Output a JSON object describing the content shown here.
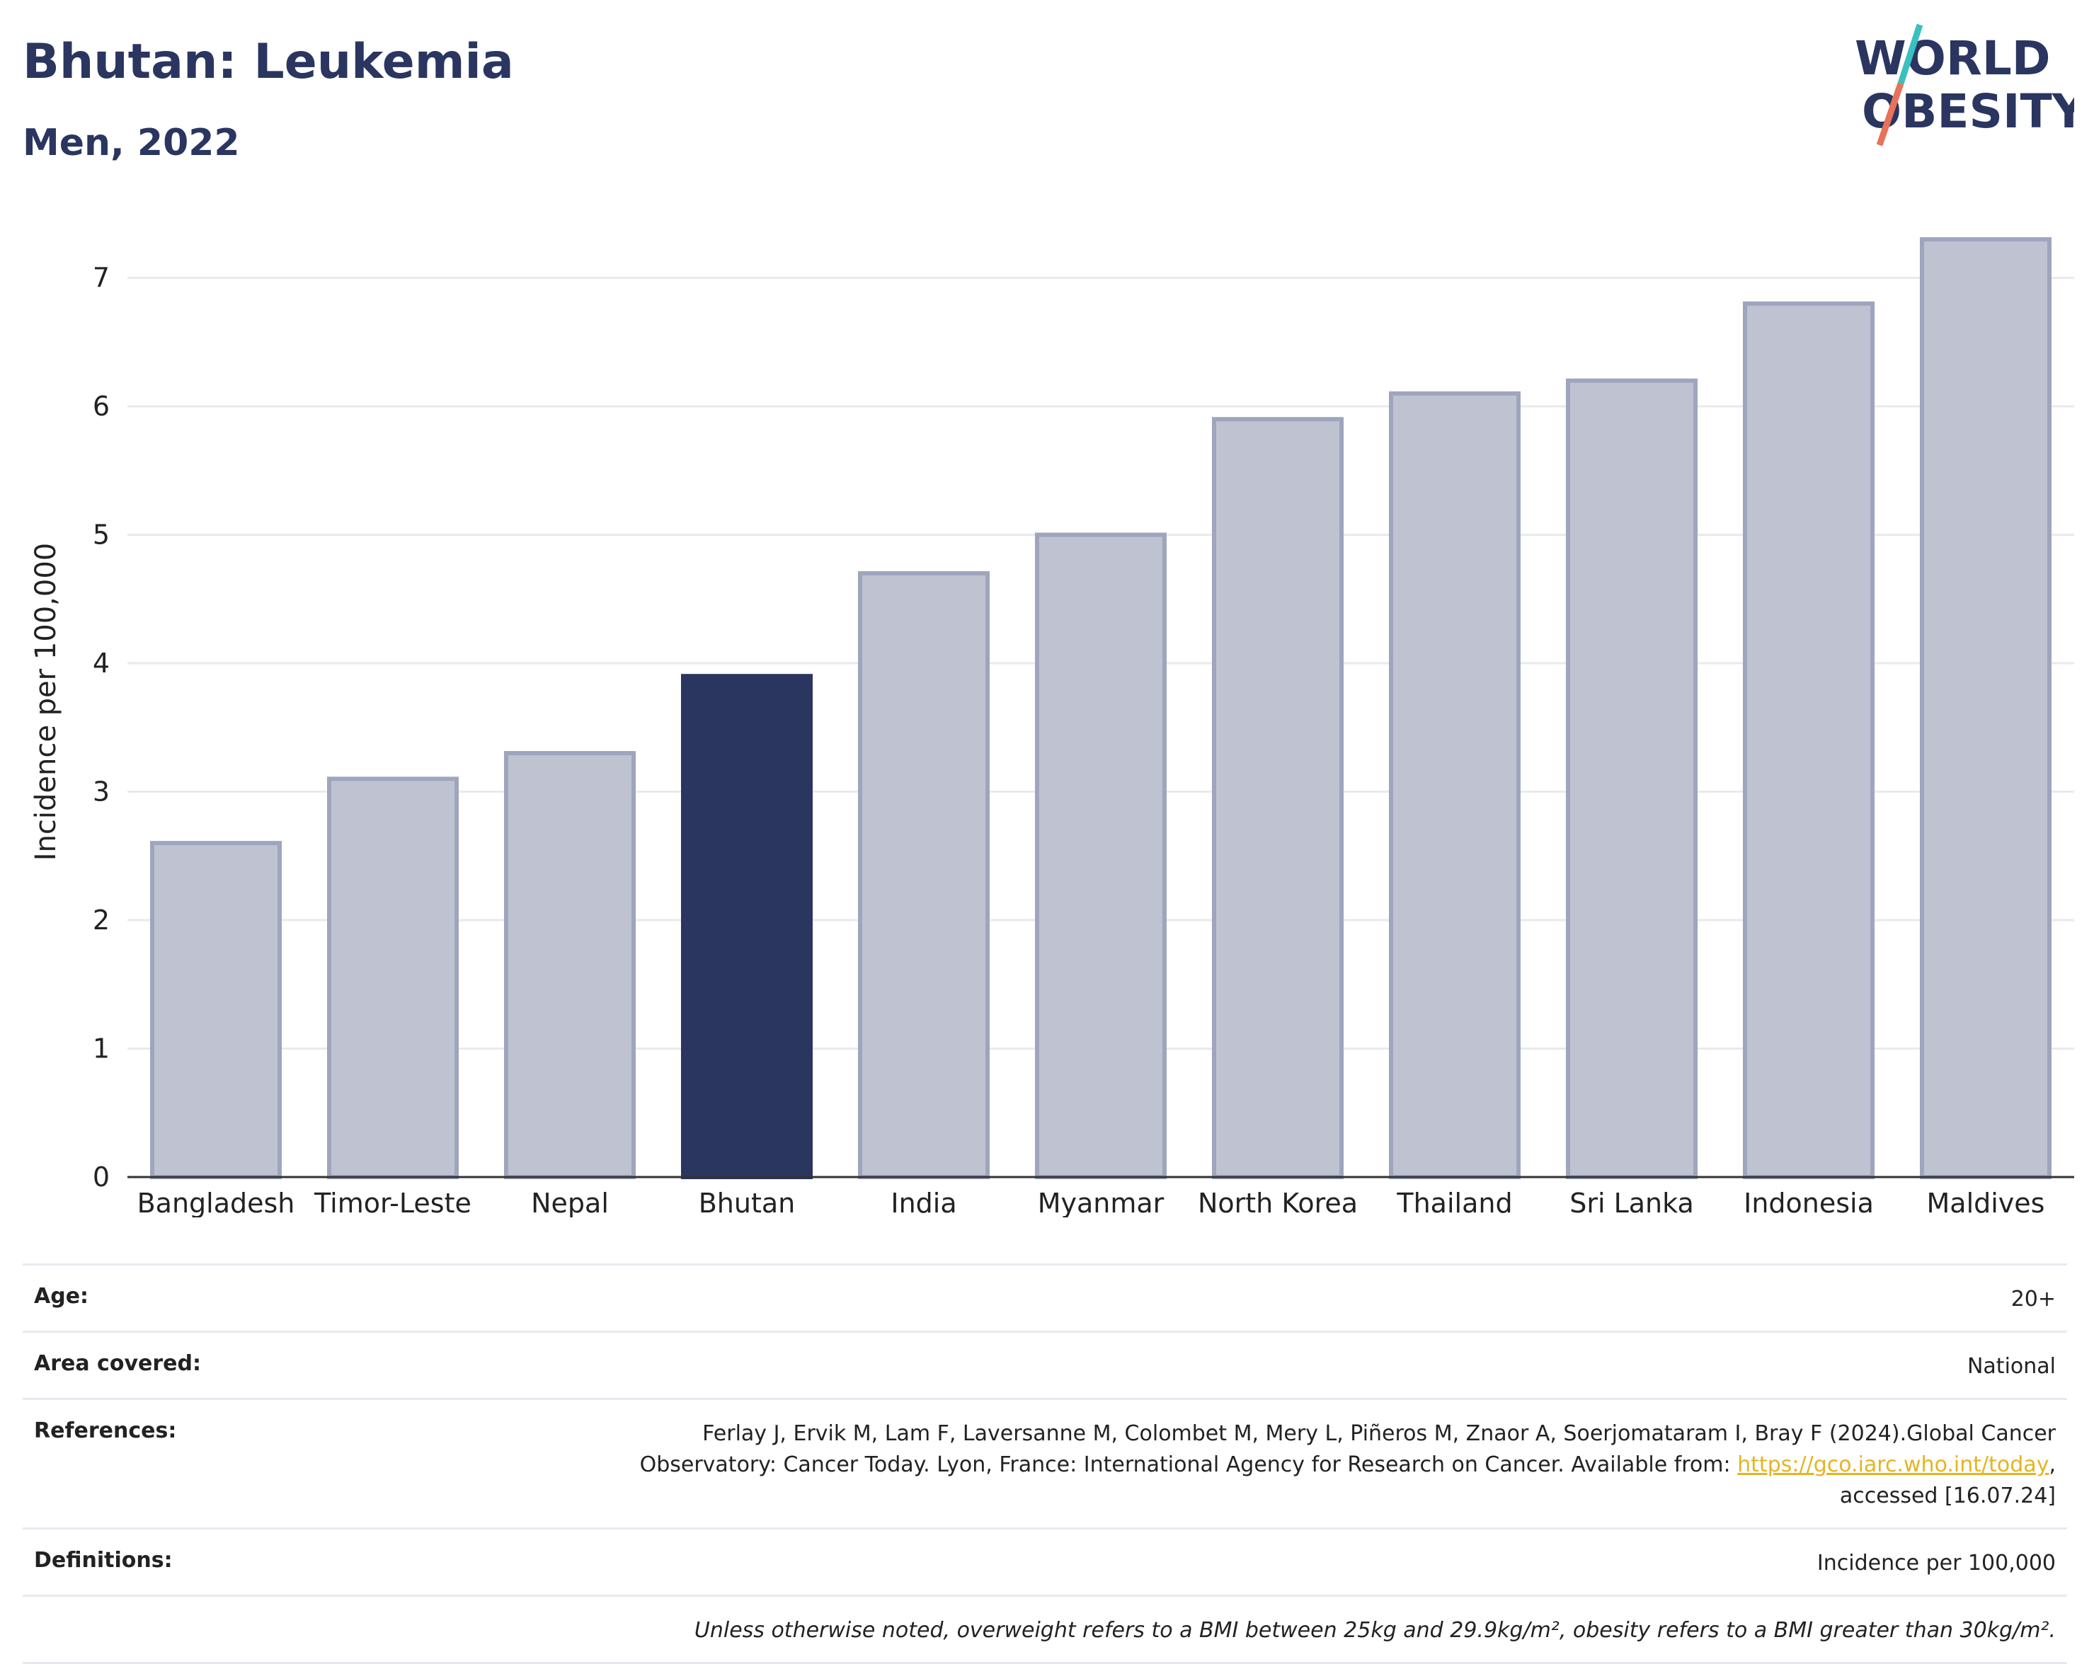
{
  "header": {
    "title": "Bhutan: Leukemia",
    "subtitle": "Men, 2022"
  },
  "logo": {
    "line1": "WORLD",
    "line2": "OBESITY",
    "colors": {
      "text": "#2a3560",
      "slash_top": "#3bbfbf",
      "slash_bottom": "#e8725a"
    }
  },
  "chart_data": {
    "type": "bar",
    "categories": [
      "Bangladesh",
      "Timor-Leste",
      "Nepal",
      "Bhutan",
      "India",
      "Myanmar",
      "North Korea",
      "Thailand",
      "Sri Lanka",
      "Indonesia",
      "Maldives"
    ],
    "values": [
      2.6,
      3.1,
      3.3,
      3.9,
      4.7,
      5.0,
      5.9,
      6.1,
      6.2,
      6.8,
      7.3
    ],
    "highlight": "Bhutan",
    "ylabel": "Incidence per 100,000",
    "xlabel": "",
    "ylim": [
      0,
      7.4
    ],
    "yticks": [
      0,
      1,
      2,
      3,
      4,
      5,
      6,
      7
    ],
    "grid": true,
    "colors": {
      "bar": "#bfc3d1",
      "bar_edge": "#9ea5bd",
      "highlight": "#2a3560",
      "grid": "#e8eaef",
      "axis": "#333333"
    }
  },
  "meta": {
    "rows": [
      {
        "key": "Age:",
        "value": "20+"
      },
      {
        "key": "Area covered:",
        "value": "National"
      },
      {
        "key": "References:",
        "value_pre": "Ferlay J, Ervik M, Lam F, Laversanne M, Colombet M, Mery L, Piñeros M, Znaor A, Soerjomataram I, Bray F (2024).Global Cancer Observatory: Cancer Today. Lyon, France: International Agency for Research on Cancer. Available from: ",
        "link": "https://gco.iarc.who.int/today",
        "value_post": ", accessed [16.07.24]"
      },
      {
        "key": "Definitions:",
        "value": "Incidence per 100,000"
      },
      {
        "key": "",
        "value": "Unless otherwise noted, overweight refers to a BMI between 25kg and 29.9kg/m², obesity refers to a BMI greater than 30kg/m²."
      }
    ]
  }
}
